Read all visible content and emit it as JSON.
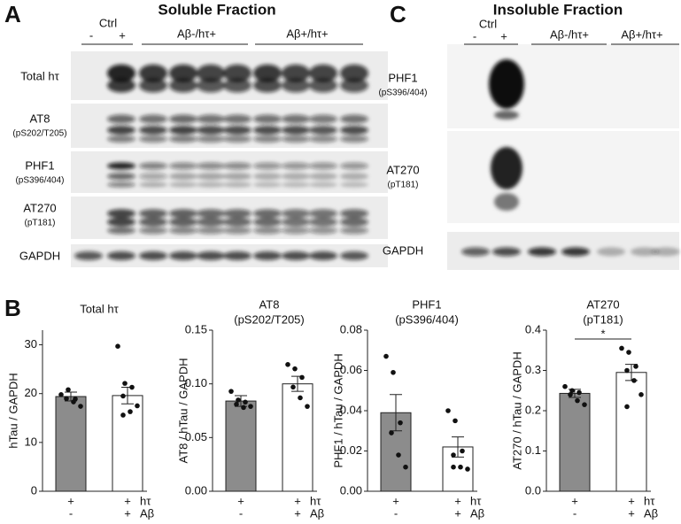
{
  "panel_a": {
    "letter": "A",
    "title": "Soluble Fraction",
    "ctrl": "Ctrl",
    "minus": "-",
    "plus": "+",
    "group1": "Aβ-/hτ+",
    "group2": "Aβ+/hτ+",
    "rows": [
      {
        "name": "Total hτ"
      },
      {
        "name": "AT8",
        "sub": "(pS202/T205)"
      },
      {
        "name": "PHF1",
        "sub": "(pS396/404)"
      },
      {
        "name": "AT270",
        "sub": "(pT181)"
      },
      {
        "name": "GAPDH"
      }
    ]
  },
  "panel_c": {
    "letter": "C",
    "title": "Insoluble Fraction",
    "ctrl": "Ctrl",
    "minus": "-",
    "plus": "+",
    "group1": "Aβ-/hτ+",
    "group2": "Aβ+/hτ+",
    "rows": [
      {
        "name": "PHF1",
        "sub": "(pS396/404)"
      },
      {
        "name": "AT270",
        "sub": "(pT181)"
      },
      {
        "name": "GAPDH"
      }
    ]
  },
  "panel_b": {
    "letter": "B"
  },
  "chart_data": [
    {
      "type": "bar",
      "title": "Total hτ",
      "ylabel": "hTau / GAPDH",
      "ylim": [
        0,
        33
      ],
      "yticks": [
        0,
        10,
        20,
        30
      ],
      "colors": [
        "#8c8c8c",
        "#ffffff"
      ],
      "values": [
        19.4,
        19.6
      ],
      "errors": [
        0.9,
        1.7
      ],
      "points": [
        [
          19.8,
          20.8,
          18.9,
          19.0,
          18.3,
          17.4
        ],
        [
          29.7,
          22.1,
          21.3,
          19.5,
          16.3,
          17.5,
          15.6
        ]
      ],
      "condition_labels": [
        "hτ",
        "Aβ"
      ],
      "categories": [
        [
          "+",
          "-"
        ],
        [
          "+",
          "+"
        ]
      ]
    },
    {
      "type": "bar",
      "title": "AT8",
      "subtitle": "(pS202/T205)",
      "ylabel": "AT8 / hTau / GAPDH",
      "ylim": [
        0,
        0.15
      ],
      "yticks": [
        {
          "value": 0,
          "label": "0.00"
        },
        0.05,
        {
          "value": 0.1,
          "label": "0.10"
        },
        0.15
      ],
      "colors": [
        "#8c8c8c",
        "#ffffff"
      ],
      "values": [
        0.084,
        0.1
      ],
      "errors": [
        0.005,
        0.007
      ],
      "points": [
        [
          0.093,
          0.085,
          0.083,
          0.081,
          0.078,
          0.079
        ],
        [
          0.118,
          0.114,
          0.106,
          0.097,
          0.087,
          0.079
        ]
      ],
      "condition_labels": [
        "hτ",
        "Aβ"
      ],
      "categories": [
        [
          "+",
          "-"
        ],
        [
          "+",
          "+"
        ]
      ]
    },
    {
      "type": "bar",
      "title": "PHF1",
      "subtitle": "(pS396/404)",
      "ylabel": "PHF1 / hTau / GAPDH",
      "ylim": [
        0,
        0.08
      ],
      "yticks": [
        {
          "value": 0,
          "label": "0.00"
        },
        0.02,
        0.04,
        0.06,
        0.08
      ],
      "colors": [
        "#8c8c8c",
        "#ffffff"
      ],
      "values": [
        0.039,
        0.022
      ],
      "errors": [
        0.009,
        0.005
      ],
      "points": [
        [
          0.067,
          0.059,
          0.034,
          0.029,
          0.018,
          0.012
        ],
        [
          0.04,
          0.035,
          0.02,
          0.018,
          0.012,
          0.011,
          0.012
        ]
      ],
      "condition_labels": [
        "hτ",
        "Aβ"
      ],
      "categories": [
        [
          "+",
          "-"
        ],
        [
          "+",
          "+"
        ]
      ]
    },
    {
      "type": "bar",
      "title": "AT270",
      "subtitle": "(pT181)",
      "ylabel": "AT270 / hTau / GAPDH",
      "ylim": [
        0,
        0.4
      ],
      "yticks": [
        {
          "value": 0,
          "label": "0.0"
        },
        0.1,
        0.2,
        0.3,
        0.4
      ],
      "colors": [
        "#8c8c8c",
        "#ffffff"
      ],
      "values": [
        0.243,
        0.295
      ],
      "errors": [
        0.01,
        0.02
      ],
      "points": [
        [
          0.26,
          0.25,
          0.245,
          0.24,
          0.225,
          0.215
        ],
        [
          0.355,
          0.345,
          0.31,
          0.3,
          0.275,
          0.24,
          0.21
        ]
      ],
      "significance": "*",
      "condition_labels": [
        "hτ",
        "Aβ"
      ],
      "categories": [
        [
          "+",
          "-"
        ],
        [
          "+",
          "+"
        ]
      ]
    }
  ]
}
